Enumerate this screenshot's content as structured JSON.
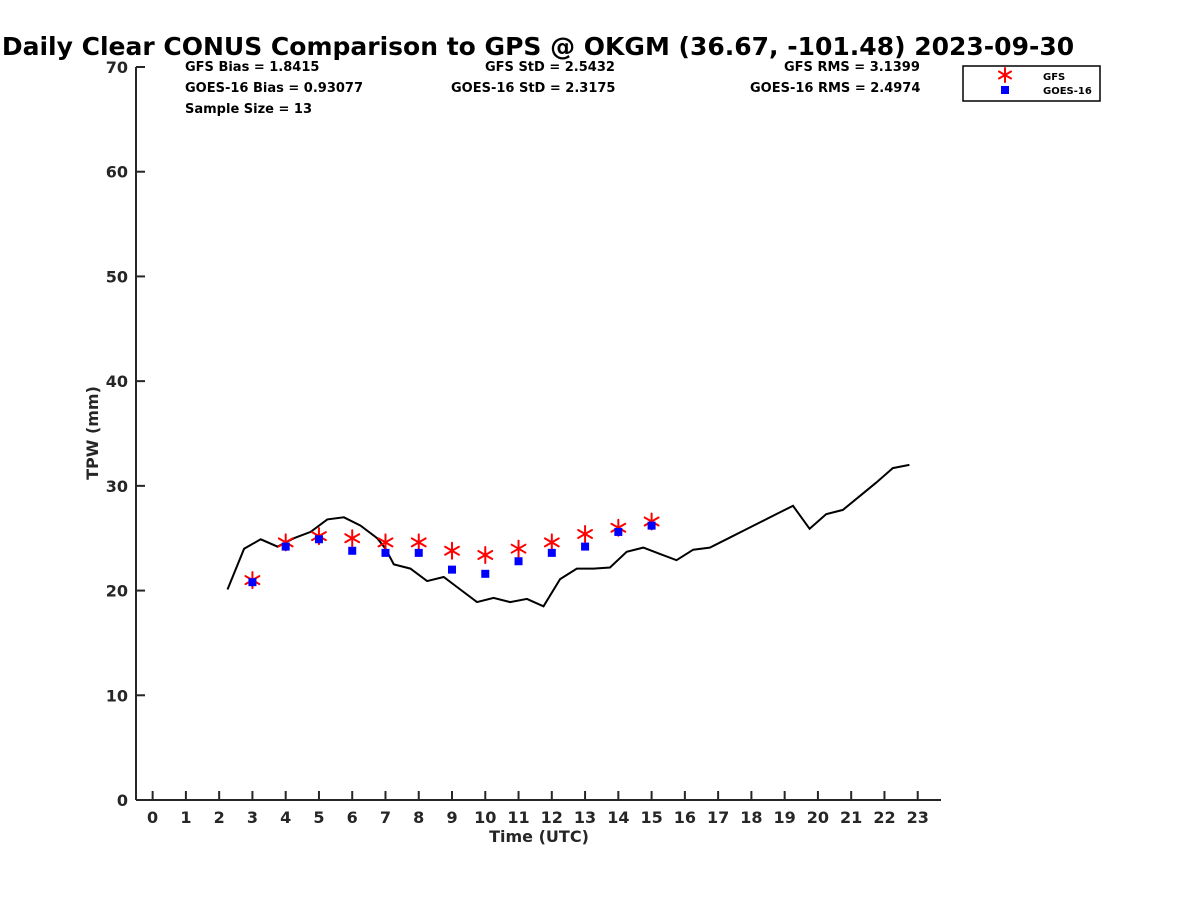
{
  "chart_data": {
    "type": "scatter",
    "title": "Daily Clear CONUS Comparison to GPS @ OKGM (36.67, -101.48) 2023-09-30",
    "xlabel": "Time (UTC)",
    "ylabel": "TPW (mm)",
    "xlim": [
      -0.5,
      23.7
    ],
    "ylim": [
      0,
      70
    ],
    "xticks": [
      0,
      1,
      2,
      3,
      4,
      5,
      6,
      7,
      8,
      9,
      10,
      11,
      12,
      13,
      14,
      15,
      16,
      17,
      18,
      19,
      20,
      21,
      22,
      23
    ],
    "yticks": [
      0,
      10,
      20,
      30,
      40,
      50,
      60,
      70
    ],
    "grid": false,
    "legend_position": "top-right, outside plot",
    "stats": [
      [
        "GFS Bias = 1.8415",
        "GFS StD = 2.5432",
        "GFS RMS = 3.1399"
      ],
      [
        "GOES-16 Bias = 0.93077",
        "GOES-16 StD = 2.3175",
        "GOES-16 RMS = 2.4974"
      ],
      [
        "Sample Size = 13"
      ]
    ],
    "series": [
      {
        "name": "GFS",
        "marker": "asterisk",
        "color": "#ff0000",
        "x": [
          3,
          4,
          5,
          6,
          7,
          8,
          9,
          10,
          11,
          12,
          13,
          14,
          15
        ],
        "y": [
          21.0,
          24.6,
          25.2,
          25.0,
          24.6,
          24.6,
          23.8,
          23.4,
          24.0,
          24.6,
          25.4,
          26.0,
          26.6
        ]
      },
      {
        "name": "GOES-16",
        "marker": "square",
        "color": "#0000ff",
        "x": [
          3,
          4,
          5,
          6,
          7,
          8,
          9,
          10,
          11,
          12,
          13,
          14,
          15
        ],
        "y": [
          20.8,
          24.2,
          24.9,
          23.8,
          23.6,
          23.6,
          22.0,
          21.6,
          22.8,
          23.6,
          24.2,
          25.6,
          26.2
        ]
      },
      {
        "marker": "line",
        "color": "#000000",
        "x": [
          2.25,
          2.75,
          3.25,
          3.75,
          4.25,
          4.75,
          5.25,
          5.75,
          6.25,
          6.75,
          7.0,
          7.25,
          7.75,
          8.25,
          8.75,
          9.25,
          9.75,
          10.25,
          10.75,
          11.25,
          11.75,
          12.25,
          12.75,
          13.25,
          13.75,
          14.25,
          14.75,
          15.25,
          15.75,
          16.25,
          16.75,
          17.25,
          17.75,
          18.25,
          18.75,
          19.25,
          19.75,
          20.25,
          20.75,
          21.25,
          21.75,
          22.25,
          22.75
        ],
        "y": [
          20.1,
          24.0,
          24.9,
          24.2,
          25.0,
          25.6,
          26.8,
          27.0,
          26.2,
          25.0,
          24.0,
          22.5,
          22.1,
          20.9,
          21.3,
          20.1,
          18.9,
          19.3,
          18.9,
          19.2,
          18.5,
          21.1,
          22.1,
          22.1,
          22.2,
          23.7,
          24.1,
          23.5,
          22.9,
          23.9,
          24.1,
          24.9,
          25.7,
          26.5,
          27.3,
          28.1,
          25.9,
          27.3,
          27.7,
          29.0,
          30.3,
          31.7,
          32.0
        ]
      }
    ]
  }
}
